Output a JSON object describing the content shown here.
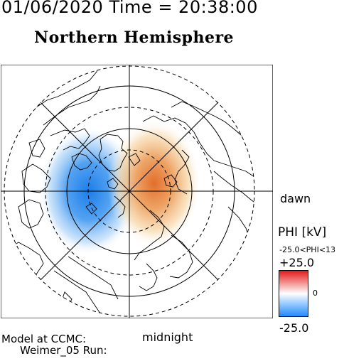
{
  "header": {
    "date_time": "01/06/2020 Time = 20:38:00",
    "hemisphere_title": "Northern Hemisphere"
  },
  "map": {
    "orientation_dawn": "dawn",
    "orientation_midnight": "midnight",
    "potential_cells": [
      {
        "sign": "negative",
        "sector": "dusk",
        "color": "#2f8ff0"
      },
      {
        "sign": "positive",
        "sector": "dawn",
        "color": "#e8823a"
      }
    ]
  },
  "colorbar": {
    "title": "PHI [kV]",
    "range_text": "-25.0<PHI<13",
    "max_label": "+25.0",
    "mid_label": "0",
    "min_label": "-25.0",
    "colors": {
      "low": "#1e88ff",
      "mid": "#ffffff",
      "high": "#e01818"
    }
  },
  "footer": {
    "model_line": "Model at CCMC:",
    "run_line": "Weimer_05 Run:"
  }
}
